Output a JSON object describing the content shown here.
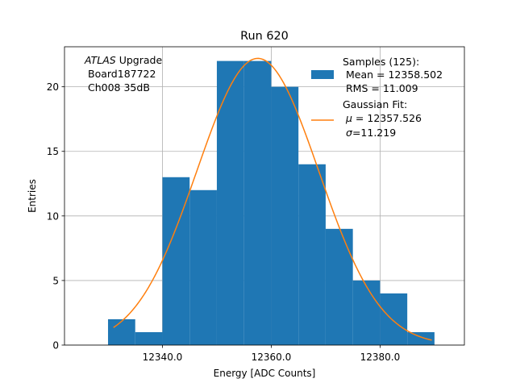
{
  "chart_data": {
    "type": "bar",
    "title": "Run 620",
    "xlabel": "Energy [ADC Counts]",
    "ylabel": "Entries",
    "xlim": [
      12322,
      12395.5
    ],
    "ylim": [
      0,
      23.1
    ],
    "grid": true,
    "x_ticks": [
      12340,
      12360,
      12380
    ],
    "x_tick_labels": [
      "12340.0",
      "12360.0",
      "12380.0"
    ],
    "y_ticks": [
      0,
      5,
      10,
      15,
      20
    ],
    "y_tick_labels": [
      "0",
      "5",
      "10",
      "15",
      "20"
    ],
    "annotation": {
      "italic": "ATLAS",
      "rest": " Upgrade",
      "line2": "Board187722",
      "line3": "Ch008 35dB"
    },
    "legend": {
      "placement": "top-right",
      "samples": {
        "line1": "Samples (125):",
        "line2": "Mean = 12358.502",
        "line3": "RMS = 11.009",
        "color": "#1f77b4"
      },
      "fit": {
        "line1": "Gaussian Fit:",
        "mu_symbol": "μ",
        "mu_text": " = 12357.526",
        "sigma_symbol": "σ",
        "sigma_text": "=11.219",
        "color": "#ff7f0e"
      }
    },
    "histogram": {
      "bin_edges": [
        12330,
        12335,
        12340,
        12345,
        12350,
        12355,
        12360,
        12365,
        12370,
        12375,
        12380,
        12385,
        12390
      ],
      "counts": [
        2,
        1,
        13,
        12,
        22,
        22,
        20,
        14,
        9,
        5,
        4,
        1
      ],
      "color": "#1f77b4"
    },
    "gaussian_fit": {
      "amplitude": 22.2,
      "mean": 12357.526,
      "sigma": 11.219,
      "x_range": [
        12331,
        12389.5
      ],
      "color": "#ff7f0e"
    }
  }
}
